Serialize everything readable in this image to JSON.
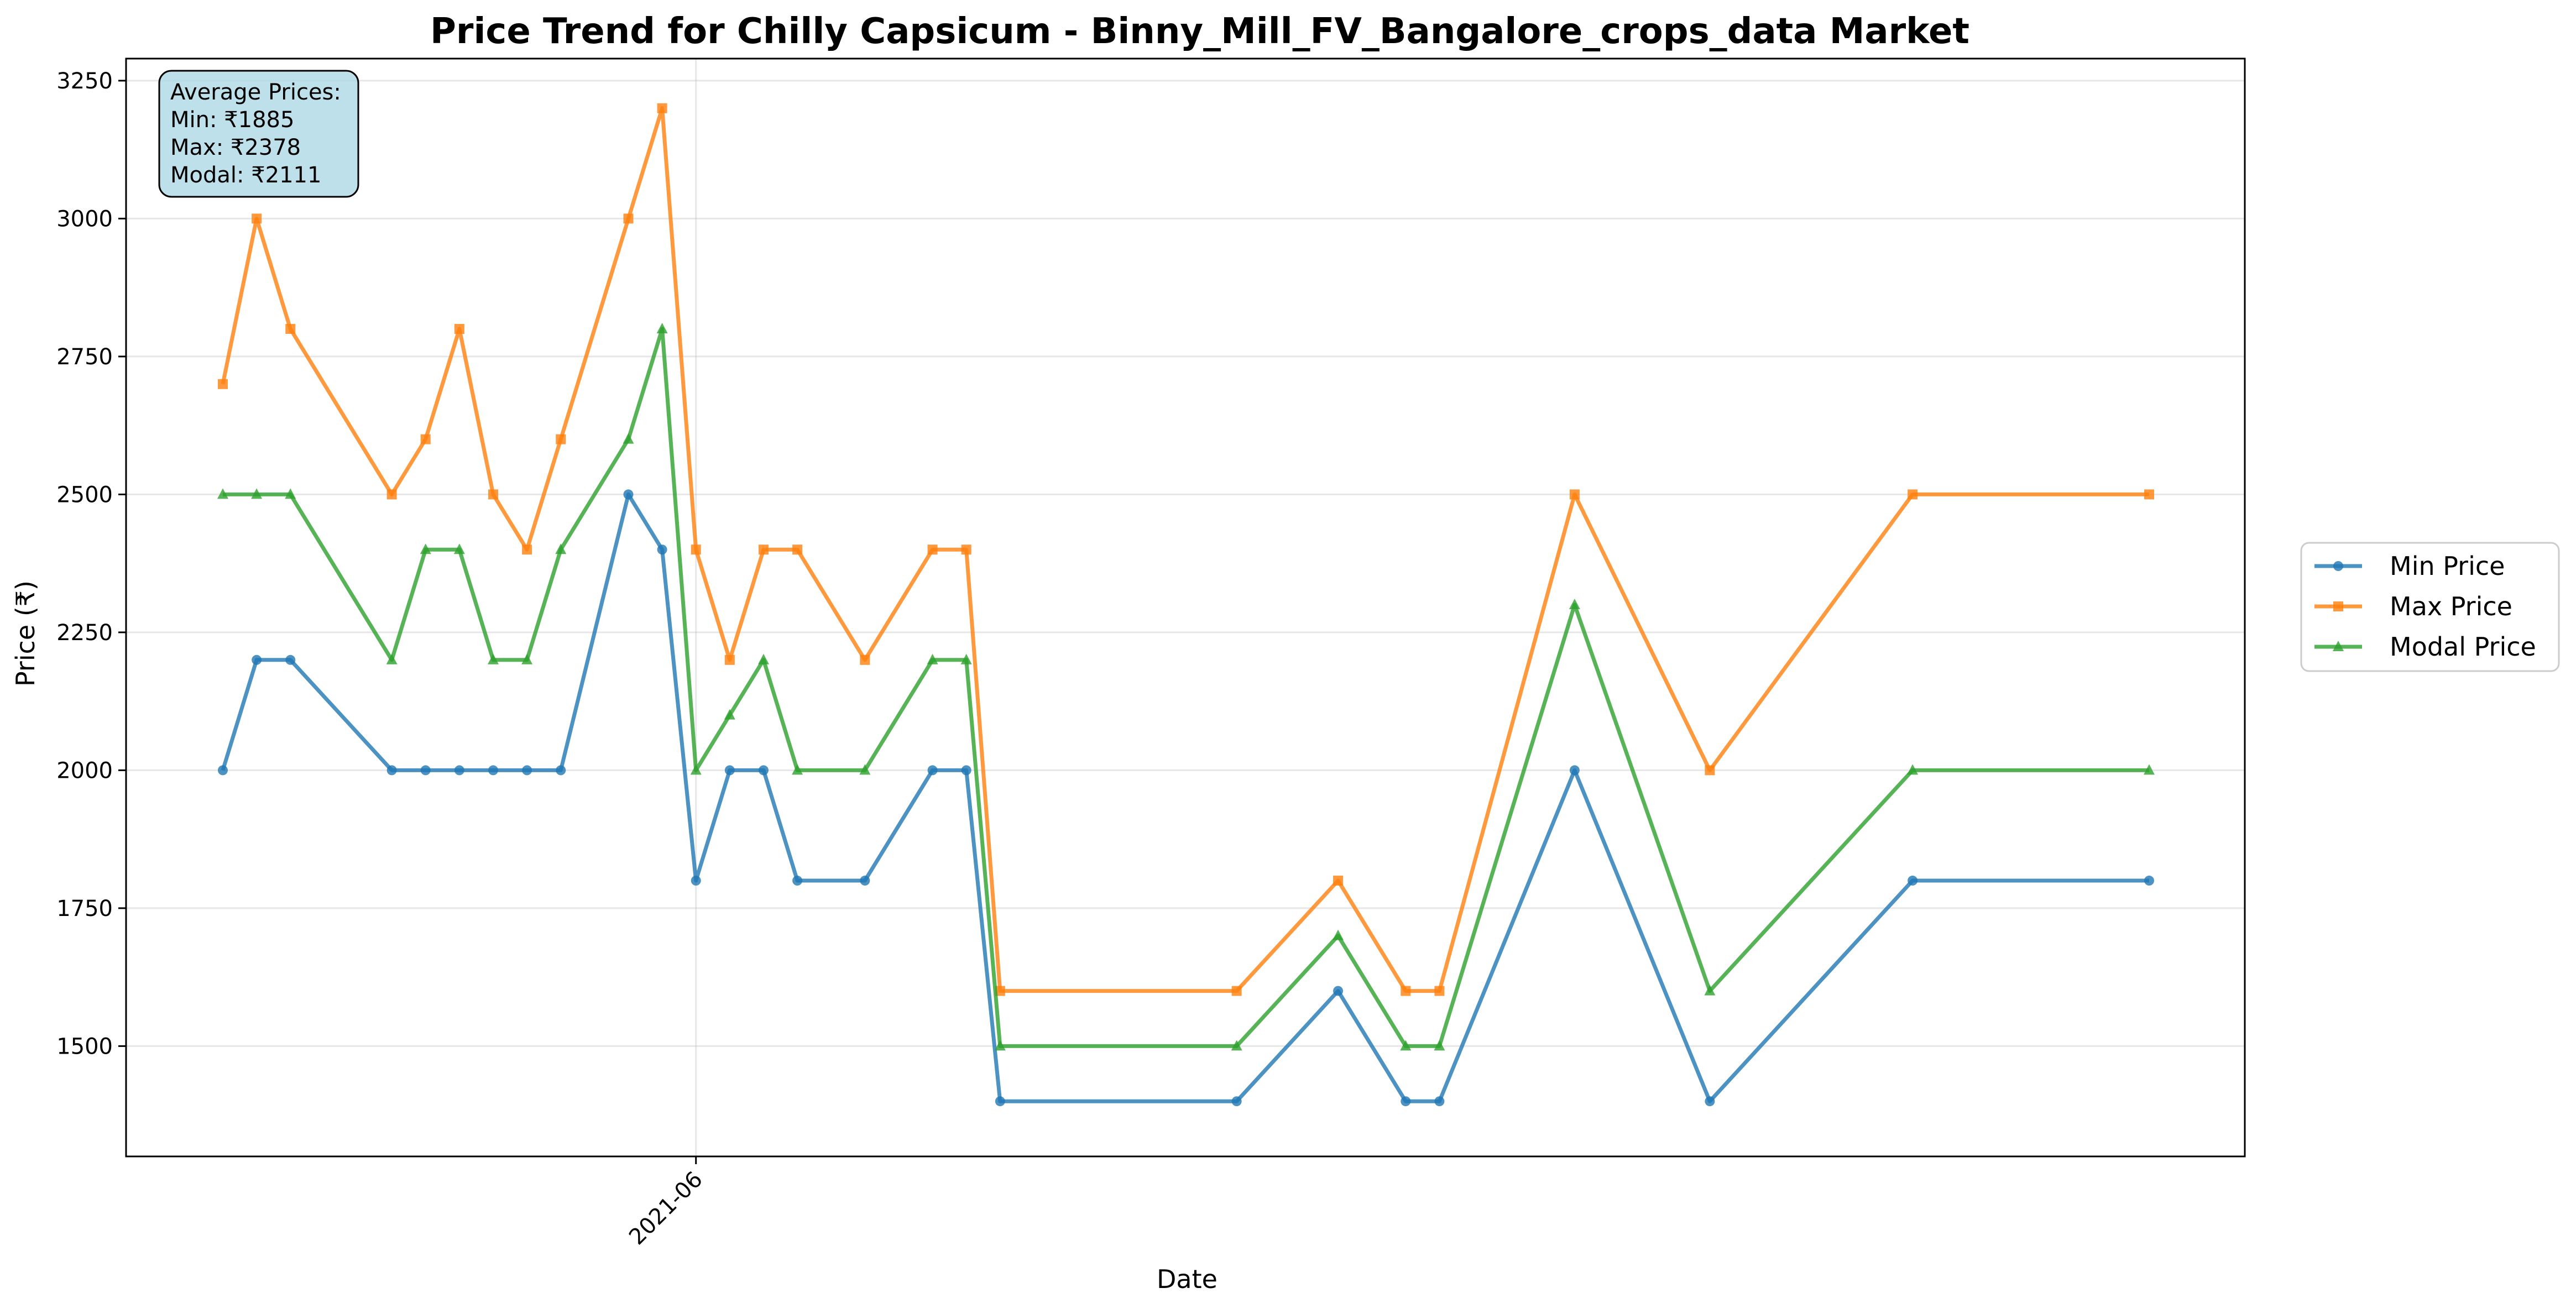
{
  "chart_data": {
    "type": "line",
    "title": "Price Trend for Chilly Capsicum - Binny_Mill_FV_Bangalore_crops_data Market",
    "xlabel": "Date",
    "ylabel": "Price (₹)",
    "x_ticks": [
      "2021-06"
    ],
    "y_ticks": [
      1500,
      1750,
      2000,
      2250,
      2500,
      2750,
      3000,
      3250
    ],
    "ylim": [
      1300,
      3290
    ],
    "grid": true,
    "legend_position": "right",
    "x": [
      "2021-05-18",
      "2021-05-19",
      "2021-05-20",
      "2021-05-23",
      "2021-05-24",
      "2021-05-25",
      "2021-05-26",
      "2021-05-27",
      "2021-05-28",
      "2021-05-30",
      "2021-05-31",
      "2021-06-01",
      "2021-06-02",
      "2021-06-03",
      "2021-06-04",
      "2021-06-06",
      "2021-06-08",
      "2021-06-09",
      "2021-06-10",
      "2021-06-17",
      "2021-06-20",
      "2021-06-22",
      "2021-06-23",
      "2021-06-27",
      "2021-07-01",
      "2021-07-07",
      "2021-07-14"
    ],
    "series": [
      {
        "name": "Min Price",
        "color": "#1f77b4",
        "marker": "circle",
        "values": [
          2000,
          2200,
          2200,
          2000,
          2000,
          2000,
          2000,
          2000,
          2000,
          2500,
          2400,
          1800,
          2000,
          2000,
          1800,
          1800,
          2000,
          2000,
          1400,
          1400,
          1600,
          1400,
          1400,
          2000,
          1400,
          1800,
          1800
        ]
      },
      {
        "name": "Max Price",
        "color": "#ff7f0e",
        "marker": "square",
        "values": [
          2700,
          3000,
          2800,
          2500,
          2600,
          2800,
          2500,
          2400,
          2600,
          3000,
          3200,
          2400,
          2200,
          2400,
          2400,
          2200,
          2400,
          2400,
          1600,
          1600,
          1800,
          1600,
          1600,
          2500,
          2000,
          2500,
          2500
        ]
      },
      {
        "name": "Modal Price",
        "color": "#2ca02c",
        "marker": "triangle",
        "values": [
          2500,
          2500,
          2500,
          2200,
          2400,
          2400,
          2200,
          2200,
          2400,
          2600,
          2800,
          2000,
          2100,
          2200,
          2000,
          2000,
          2200,
          2200,
          1500,
          1500,
          1700,
          1500,
          1500,
          2300,
          1600,
          2000,
          2000
        ]
      }
    ],
    "annotation": {
      "lines": [
        "Average Prices:",
        "Min: ₹1885",
        "Max: ₹2378",
        "Modal: ₹2111"
      ],
      "position": "top-left",
      "background": "#add8e6"
    }
  }
}
